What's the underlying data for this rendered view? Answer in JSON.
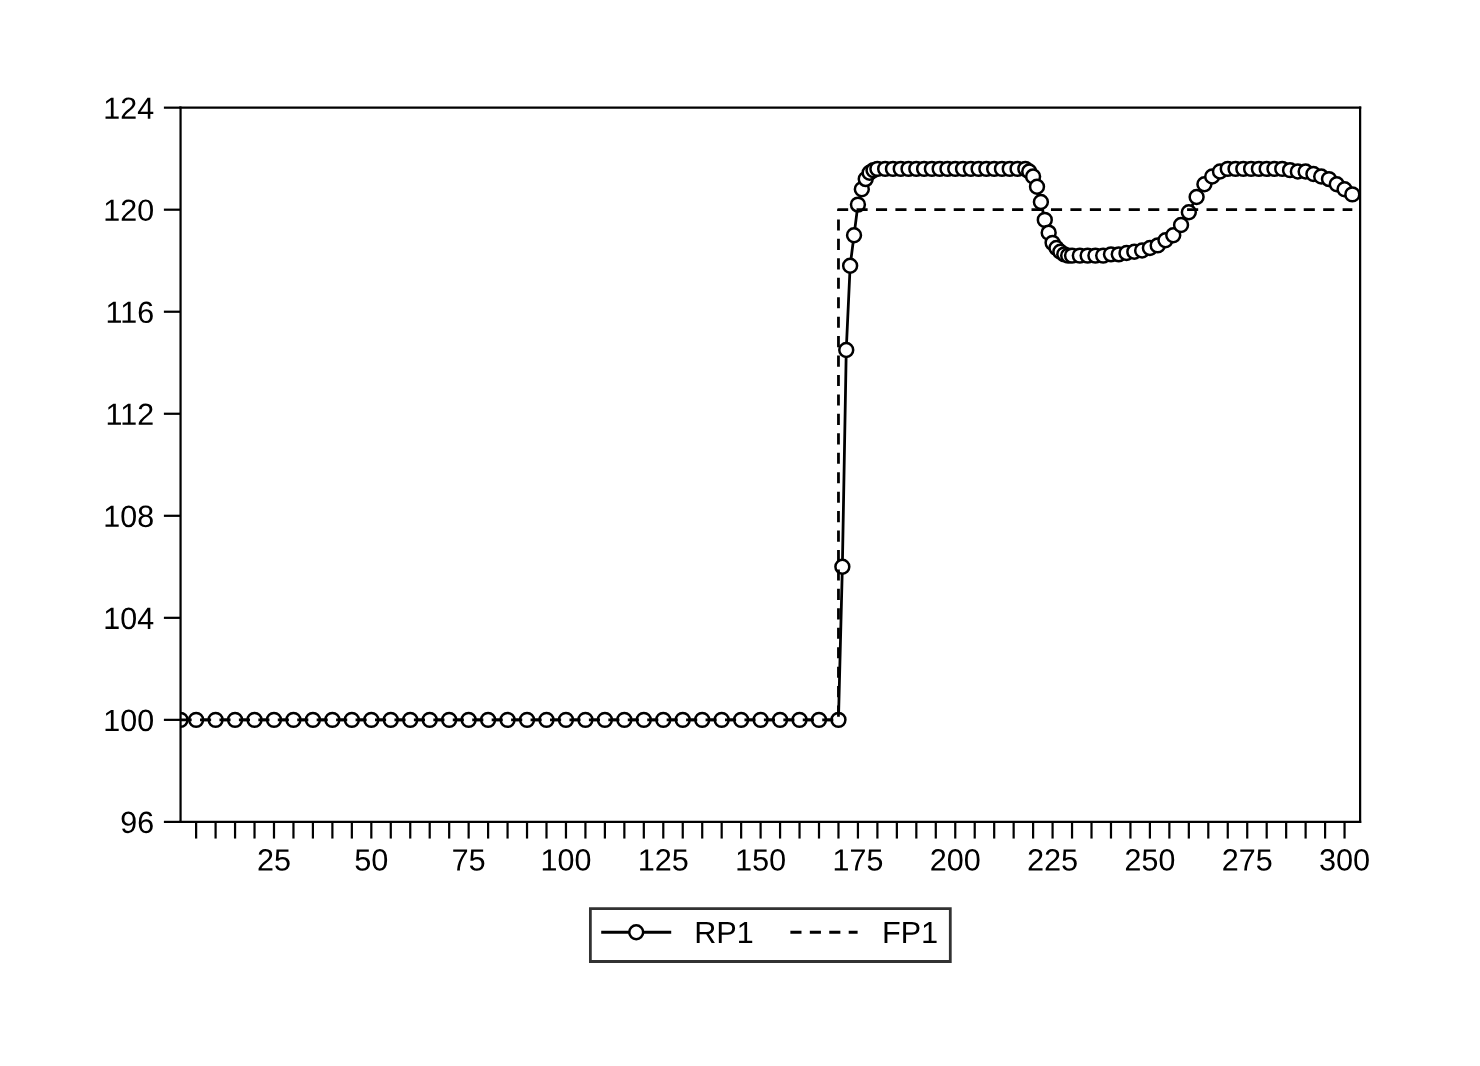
{
  "chart_data": {
    "type": "line",
    "xlim": [
      1,
      304
    ],
    "ylim": [
      96,
      124
    ],
    "xticks": [
      {
        "value": 5,
        "label": null
      },
      {
        "value": 10,
        "label": null
      },
      {
        "value": 15,
        "label": null
      },
      {
        "value": 20,
        "label": null
      },
      25,
      {
        "value": 30,
        "label": null
      },
      {
        "value": 35,
        "label": null
      },
      {
        "value": 40,
        "label": null
      },
      {
        "value": 45,
        "label": null
      },
      50,
      {
        "value": 55,
        "label": null
      },
      {
        "value": 60,
        "label": null
      },
      {
        "value": 65,
        "label": null
      },
      {
        "value": 70,
        "label": null
      },
      75,
      {
        "value": 80,
        "label": null
      },
      {
        "value": 85,
        "label": null
      },
      {
        "value": 90,
        "label": null
      },
      {
        "value": 95,
        "label": null
      },
      100,
      {
        "value": 105,
        "label": null
      },
      {
        "value": 110,
        "label": null
      },
      {
        "value": 115,
        "label": null
      },
      {
        "value": 120,
        "label": null
      },
      125,
      {
        "value": 130,
        "label": null
      },
      {
        "value": 135,
        "label": null
      },
      {
        "value": 140,
        "label": null
      },
      {
        "value": 145,
        "label": null
      },
      150,
      {
        "value": 155,
        "label": null
      },
      {
        "value": 160,
        "label": null
      },
      {
        "value": 165,
        "label": null
      },
      {
        "value": 170,
        "label": null
      },
      175,
      {
        "value": 180,
        "label": null
      },
      {
        "value": 185,
        "label": null
      },
      {
        "value": 190,
        "label": null
      },
      {
        "value": 195,
        "label": null
      },
      200,
      {
        "value": 205,
        "label": null
      },
      {
        "value": 210,
        "label": null
      },
      {
        "value": 215,
        "label": null
      },
      {
        "value": 220,
        "label": null
      },
      225,
      {
        "value": 230,
        "label": null
      },
      {
        "value": 235,
        "label": null
      },
      {
        "value": 240,
        "label": null
      },
      {
        "value": 245,
        "label": null
      },
      250,
      {
        "value": 255,
        "label": null
      },
      {
        "value": 260,
        "label": null
      },
      {
        "value": 265,
        "label": null
      },
      {
        "value": 270,
        "label": null
      },
      275,
      {
        "value": 280,
        "label": null
      },
      {
        "value": 285,
        "label": null
      },
      {
        "value": 290,
        "label": null
      },
      {
        "value": 295,
        "label": null
      },
      300
    ],
    "yticks": [
      96,
      100,
      104,
      108,
      112,
      116,
      120,
      124
    ],
    "grid": false,
    "legend": "bottom",
    "series": [
      {
        "name": "RP1",
        "color": "#000000",
        "marker": "circle",
        "line_style": "solid",
        "x": [
          1,
          5,
          10,
          15,
          20,
          25,
          30,
          35,
          40,
          45,
          50,
          55,
          60,
          65,
          70,
          75,
          80,
          85,
          90,
          95,
          100,
          105,
          110,
          115,
          120,
          125,
          130,
          135,
          140,
          145,
          150,
          155,
          160,
          165,
          170,
          171,
          172,
          173,
          174,
          175,
          176,
          177,
          178,
          179,
          180,
          182,
          184,
          186,
          188,
          190,
          192,
          194,
          196,
          198,
          200,
          202,
          204,
          206,
          208,
          210,
          212,
          214,
          216,
          218,
          219,
          220,
          221,
          222,
          223,
          224,
          225,
          226,
          227,
          228,
          229,
          230,
          232,
          234,
          236,
          238,
          240,
          242,
          244,
          246,
          248,
          250,
          252,
          254,
          256,
          258,
          260,
          262,
          264,
          266,
          268,
          270,
          272,
          274,
          276,
          278,
          280,
          282,
          284,
          286,
          288,
          290,
          292,
          294,
          296,
          298,
          300,
          302
        ],
        "values": [
          100,
          100,
          100,
          100,
          100,
          100,
          100,
          100,
          100,
          100,
          100,
          100,
          100,
          100,
          100,
          100,
          100,
          100,
          100,
          100,
          100,
          100,
          100,
          100,
          100,
          100,
          100,
          100,
          100,
          100,
          100,
          100,
          100,
          100,
          100,
          106.0,
          114.5,
          117.8,
          119.0,
          120.2,
          120.8,
          121.2,
          121.45,
          121.55,
          121.6,
          121.6,
          121.6,
          121.6,
          121.6,
          121.6,
          121.6,
          121.6,
          121.6,
          121.6,
          121.6,
          121.6,
          121.6,
          121.6,
          121.6,
          121.6,
          121.6,
          121.6,
          121.6,
          121.6,
          121.5,
          121.3,
          120.9,
          120.3,
          119.6,
          119.1,
          118.7,
          118.5,
          118.35,
          118.25,
          118.2,
          118.2,
          118.2,
          118.2,
          118.2,
          118.2,
          118.25,
          118.25,
          118.3,
          118.35,
          118.4,
          118.5,
          118.6,
          118.8,
          119.0,
          119.4,
          119.9,
          120.5,
          121.0,
          121.3,
          121.5,
          121.6,
          121.6,
          121.6,
          121.6,
          121.6,
          121.6,
          121.6,
          121.6,
          121.55,
          121.5,
          121.5,
          121.4,
          121.3,
          121.2,
          121.0,
          120.8,
          120.6
        ]
      },
      {
        "name": "FP1",
        "color": "#000000",
        "marker": "none",
        "line_style": "dashed",
        "x": [
          1,
          170,
          170,
          302
        ],
        "values": [
          100,
          100,
          120,
          120
        ]
      }
    ]
  }
}
